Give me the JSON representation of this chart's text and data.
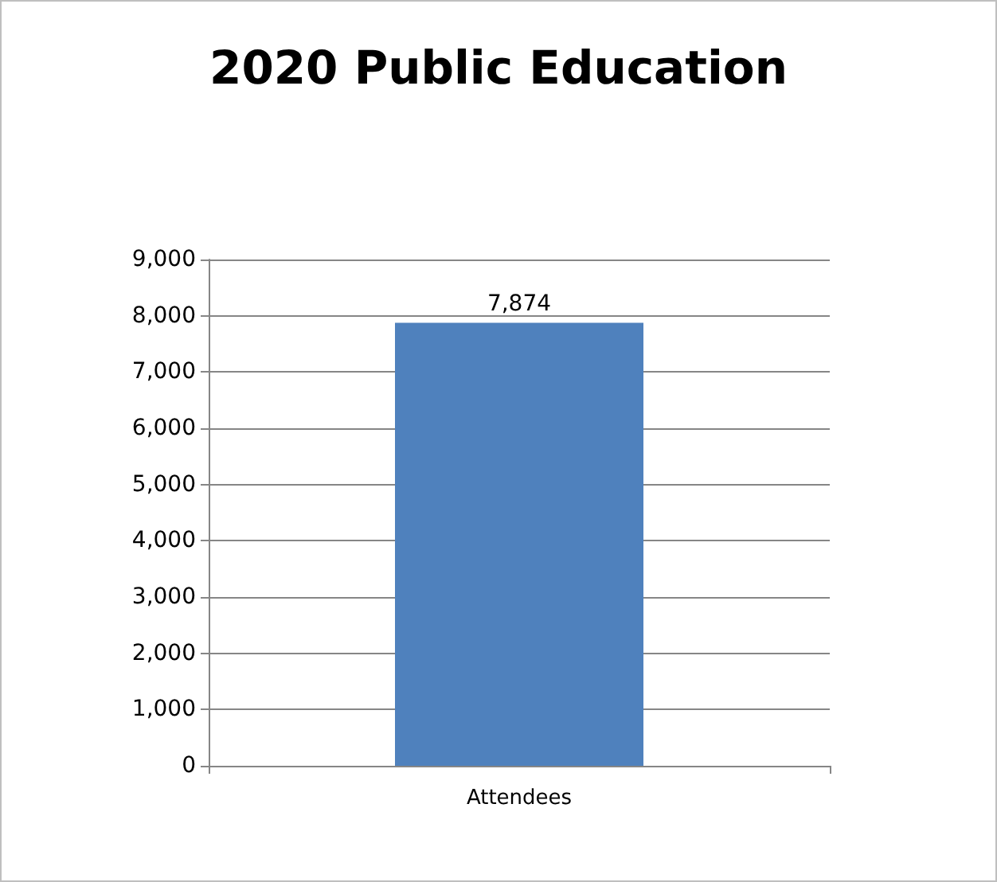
{
  "chart_data": {
    "type": "bar",
    "title": "2020 Public Education",
    "categories": [
      "Attendees"
    ],
    "values": [
      7874
    ],
    "color": "#4f81bd",
    "value_labels": [
      "7,874"
    ],
    "ylim": [
      0,
      9000
    ],
    "yticks": [
      {
        "value": 0,
        "label": "0"
      },
      {
        "value": 1000,
        "label": "1,000"
      },
      {
        "value": 2000,
        "label": "2,000"
      },
      {
        "value": 3000,
        "label": "3,000"
      },
      {
        "value": 4000,
        "label": "4,000"
      },
      {
        "value": 5000,
        "label": "5,000"
      },
      {
        "value": 6000,
        "label": "6,000"
      },
      {
        "value": 7000,
        "label": "7,000"
      },
      {
        "value": 8000,
        "label": "8,000"
      },
      {
        "value": 9000,
        "label": "9,000"
      }
    ],
    "grid": "y"
  }
}
